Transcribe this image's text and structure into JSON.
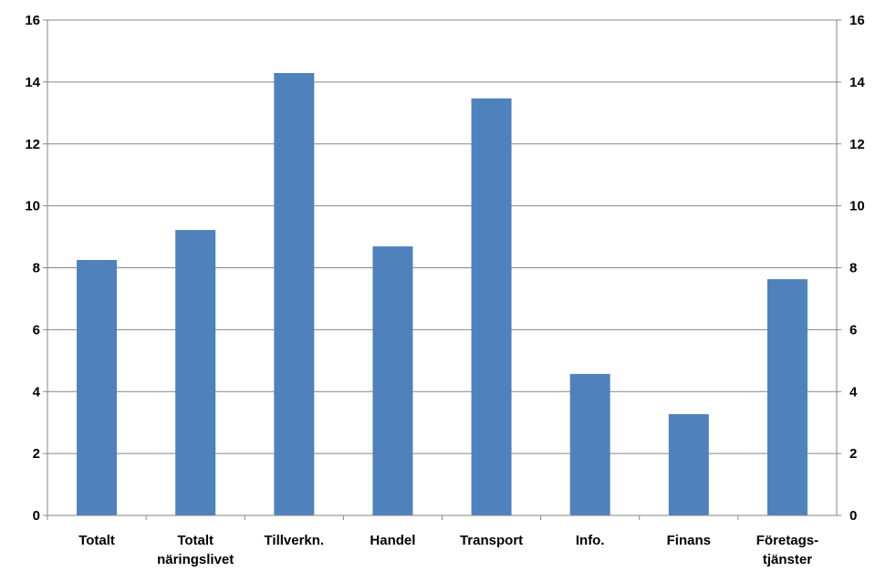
{
  "chart_data": {
    "type": "bar",
    "categories": [
      "Totalt",
      "Totalt\nnäringslivet",
      "Tillverkn.",
      "Handel",
      "Transport",
      "Info.",
      "Finans",
      "Företags-\ntjänster"
    ],
    "values": [
      8.25,
      9.22,
      14.29,
      8.69,
      13.47,
      4.57,
      3.27,
      7.63
    ],
    "color": "#4f81bd",
    "ylim": [
      0,
      16
    ],
    "yticks": [
      0,
      2,
      4,
      6,
      8,
      10,
      12,
      14,
      16
    ],
    "y2lim": [
      0,
      16
    ],
    "y2ticks": [
      0,
      2,
      4,
      6,
      8,
      10,
      12,
      14,
      16
    ],
    "grid": true
  }
}
